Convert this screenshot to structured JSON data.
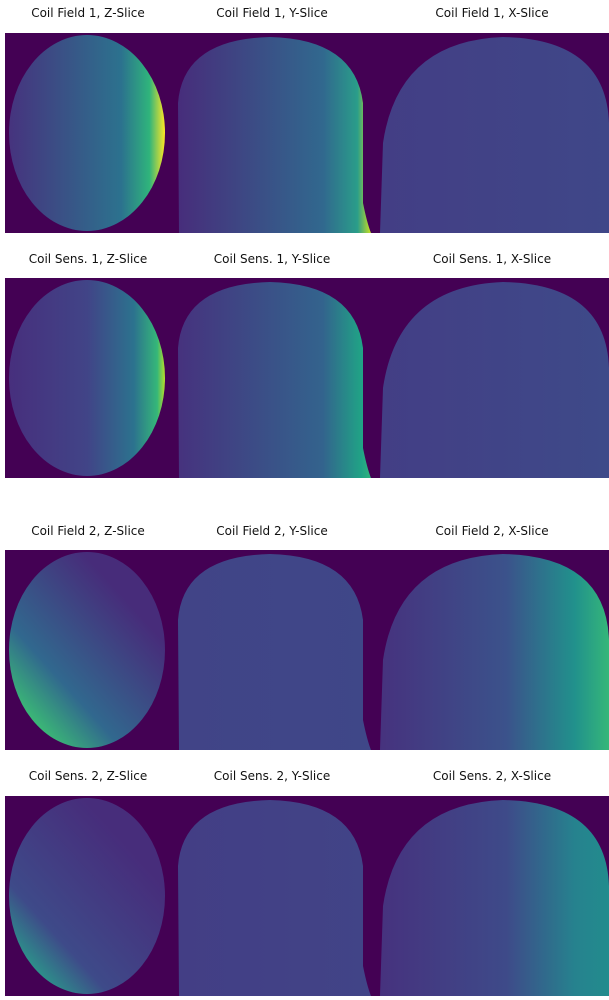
{
  "rows": [
    {
      "titles": [
        "Coil Field 1, Z-Slice",
        "Coil Field 1, Y-Slice",
        "Coil Field 1, X-Slice"
      ]
    },
    {
      "titles": [
        "Coil Sens. 1, Z-Slice",
        "Coil Sens. 1, Y-Slice",
        "Coil Sens. 1, X-Slice"
      ]
    },
    {
      "titles": [
        "Coil Field 2, Z-Slice",
        "Coil Field 2, Y-Slice",
        "Coil Field 2, X-Slice"
      ]
    },
    {
      "titles": [
        "Coil Sens. 2, Z-Slice",
        "Coil Sens. 2, Y-Slice",
        "Coil Sens. 2, X-Slice"
      ]
    }
  ]
}
